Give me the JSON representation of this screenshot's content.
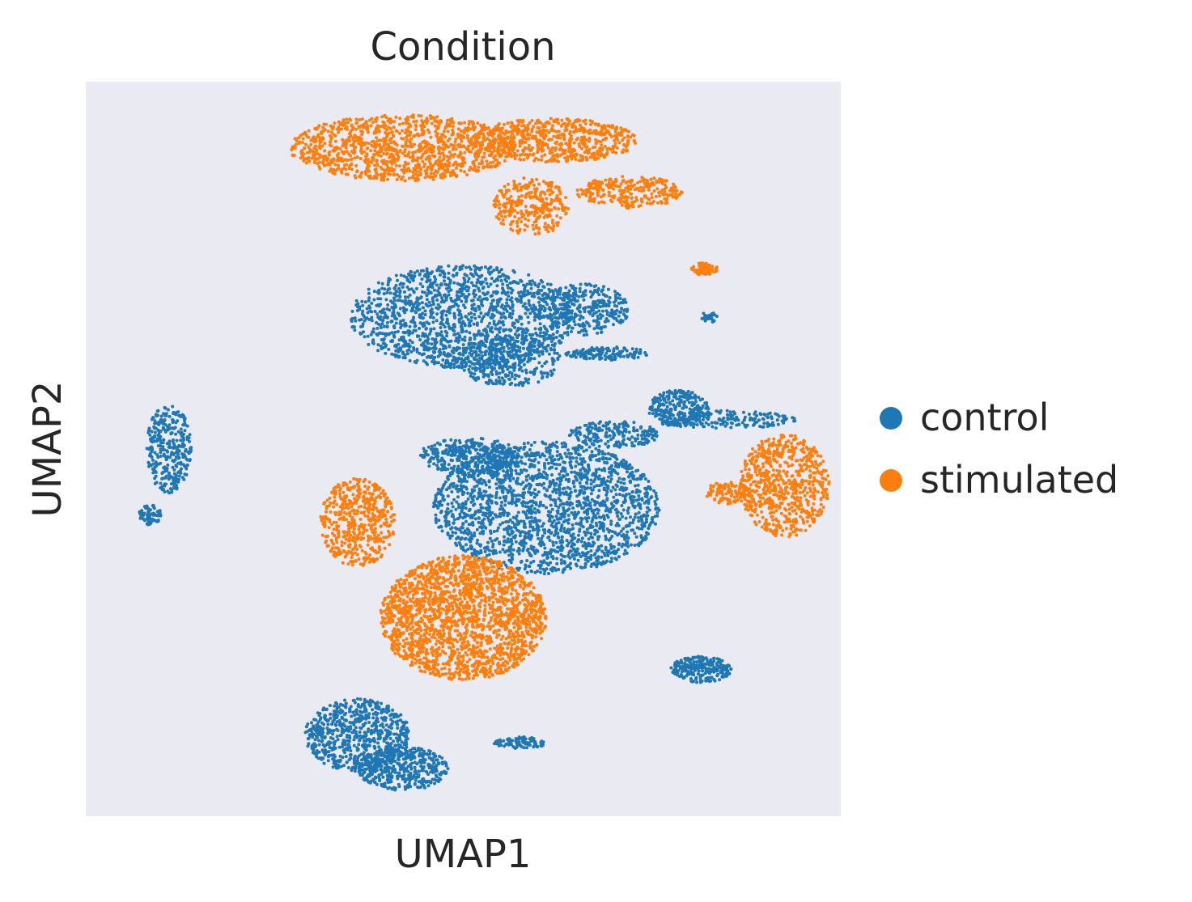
{
  "chart_data": {
    "type": "scatter",
    "title": "Condition",
    "xlabel": "UMAP1",
    "ylabel": "UMAP2",
    "xlim": [
      0,
      100
    ],
    "ylim": [
      0,
      100
    ],
    "grid": false,
    "axis_ticks": false,
    "legend_position": "right",
    "background": "#eaeaf2",
    "series": [
      {
        "name": "control",
        "color": "#1f77b4"
      },
      {
        "name": "stimulated",
        "color": "#ff7f0e"
      }
    ],
    "clusters": [
      {
        "series": "stimulated",
        "cx": 42,
        "cy": 91,
        "rx": 15,
        "ry": 4.5,
        "n": 1200
      },
      {
        "series": "stimulated",
        "cx": 62,
        "cy": 92,
        "rx": 11,
        "ry": 3,
        "n": 650
      },
      {
        "series": "stimulated",
        "cx": 72,
        "cy": 85,
        "rx": 7,
        "ry": 2.2,
        "n": 260
      },
      {
        "series": "stimulated",
        "cx": 59,
        "cy": 83,
        "rx": 5,
        "ry": 4,
        "n": 300
      },
      {
        "series": "control",
        "cx": 50,
        "cy": 68,
        "rx": 15,
        "ry": 7,
        "n": 1500
      },
      {
        "series": "control",
        "cx": 66,
        "cy": 69,
        "rx": 6,
        "ry": 3.5,
        "n": 320
      },
      {
        "series": "control",
        "cx": 56,
        "cy": 62,
        "rx": 7,
        "ry": 3.5,
        "n": 350
      },
      {
        "series": "control",
        "cx": 69,
        "cy": 63,
        "rx": 5.5,
        "ry": 0.9,
        "n": 140
      },
      {
        "series": "stimulated",
        "cx": 82,
        "cy": 74.5,
        "rx": 1.8,
        "ry": 0.9,
        "n": 70
      },
      {
        "series": "control",
        "cx": 82.5,
        "cy": 68,
        "rx": 1.1,
        "ry": 0.8,
        "n": 30
      },
      {
        "series": "control",
        "cx": 11,
        "cy": 50,
        "rx": 3,
        "ry": 6,
        "n": 320
      },
      {
        "series": "control",
        "cx": 8.5,
        "cy": 41,
        "rx": 1.5,
        "ry": 1.4,
        "n": 70
      },
      {
        "series": "control",
        "cx": 61,
        "cy": 42,
        "rx": 15,
        "ry": 9,
        "n": 2000
      },
      {
        "series": "control",
        "cx": 51,
        "cy": 49,
        "rx": 7,
        "ry": 2.5,
        "n": 350
      },
      {
        "series": "stimulated",
        "cx": 36,
        "cy": 40,
        "rx": 5,
        "ry": 6,
        "n": 500
      },
      {
        "series": "stimulated",
        "cx": 50,
        "cy": 27,
        "rx": 11,
        "ry": 8.5,
        "n": 2000
      },
      {
        "series": "control",
        "cx": 78.5,
        "cy": 55.5,
        "rx": 4,
        "ry": 2.5,
        "n": 260
      },
      {
        "series": "control",
        "cx": 70,
        "cy": 52,
        "rx": 6,
        "ry": 1.8,
        "n": 200
      },
      {
        "series": "control",
        "cx": 85,
        "cy": 54,
        "rx": 9,
        "ry": 1.2,
        "n": 180
      },
      {
        "series": "stimulated",
        "cx": 92.5,
        "cy": 45,
        "rx": 6,
        "ry": 7,
        "n": 700
      },
      {
        "series": "stimulated",
        "cx": 85,
        "cy": 44,
        "rx": 3,
        "ry": 1.5,
        "n": 100
      },
      {
        "series": "control",
        "cx": 81.5,
        "cy": 20,
        "rx": 4,
        "ry": 1.8,
        "n": 240
      },
      {
        "series": "control",
        "cx": 36,
        "cy": 11,
        "rx": 7,
        "ry": 5,
        "n": 700
      },
      {
        "series": "control",
        "cx": 42,
        "cy": 6.5,
        "rx": 6,
        "ry": 3,
        "n": 450
      },
      {
        "series": "control",
        "cx": 57.5,
        "cy": 10,
        "rx": 3.5,
        "ry": 0.8,
        "n": 90
      }
    ]
  }
}
